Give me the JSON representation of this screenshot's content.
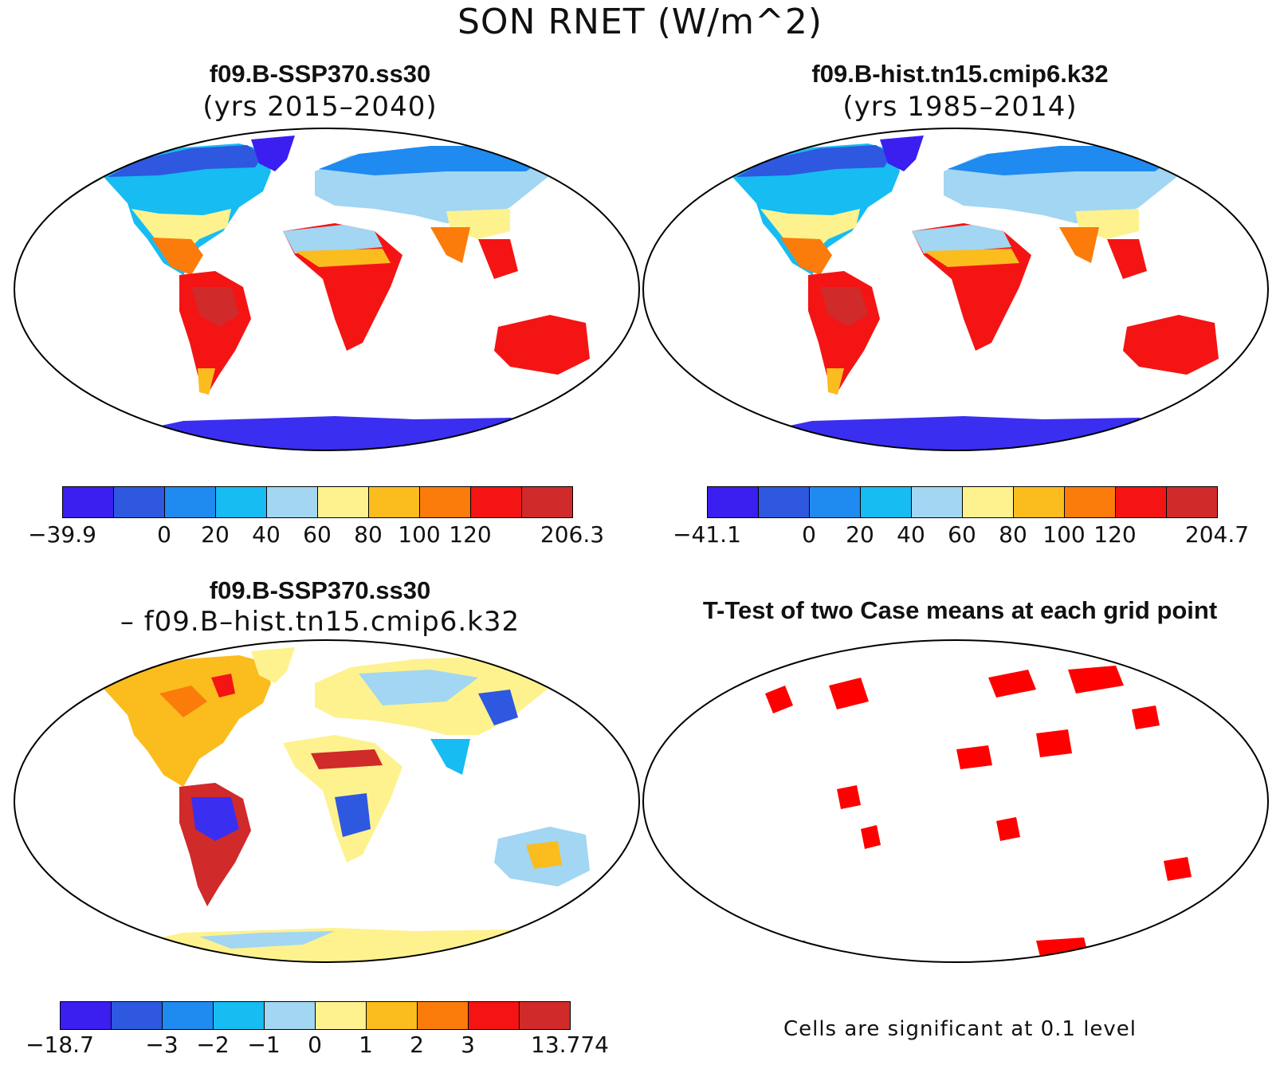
{
  "figure": {
    "title": "SON RNET (W/m^2)",
    "panels": [
      {
        "title": "f09.B-SSP370.ss30",
        "subtitle": "(yrs 2015–2040)"
      },
      {
        "title": "f09.B-hist.tn15.cmip6.k32",
        "subtitle": "(yrs 1985–2014)"
      },
      {
        "title": "f09.B-SSP370.ss30",
        "subtitle": "– f09.B–hist.tn15.cmip6.k32"
      },
      {
        "title": "T-Test of two Case means at each grid point",
        "subtitle": ""
      }
    ],
    "colorbars": [
      {
        "labels": [
          "−39.9",
          "0",
          "20",
          "40",
          "60",
          "80",
          "100",
          "120",
          "206.3"
        ],
        "colors": [
          "#3a1ff0",
          "#2e58e0",
          "#1f8af0",
          "#16bcf2",
          "#a2d6f2",
          "#fdf28e",
          "#fbbc1e",
          "#fb7c0a",
          "#f41414",
          "#d02a2a"
        ]
      },
      {
        "labels": [
          "−41.1",
          "0",
          "20",
          "40",
          "60",
          "80",
          "100",
          "120",
          "204.7"
        ],
        "colors": [
          "#3a1ff0",
          "#2e58e0",
          "#1f8af0",
          "#16bcf2",
          "#a2d6f2",
          "#fdf28e",
          "#fbbc1e",
          "#fb7c0a",
          "#f41414",
          "#d02a2a"
        ]
      },
      {
        "labels": [
          "−18.7",
          "−3",
          "−2",
          "−1",
          "0",
          "1",
          "2",
          "3",
          "13.774"
        ],
        "colors": [
          "#3a1ff0",
          "#2e58e0",
          "#1f8af0",
          "#16bcf2",
          "#a2d6f2",
          "#fdf28e",
          "#fbbc1e",
          "#fb7c0a",
          "#f41414",
          "#d02a2a"
        ]
      }
    ],
    "significance_note": "Cells are significant at 0.1 level",
    "significance_color": "#ff0000"
  }
}
